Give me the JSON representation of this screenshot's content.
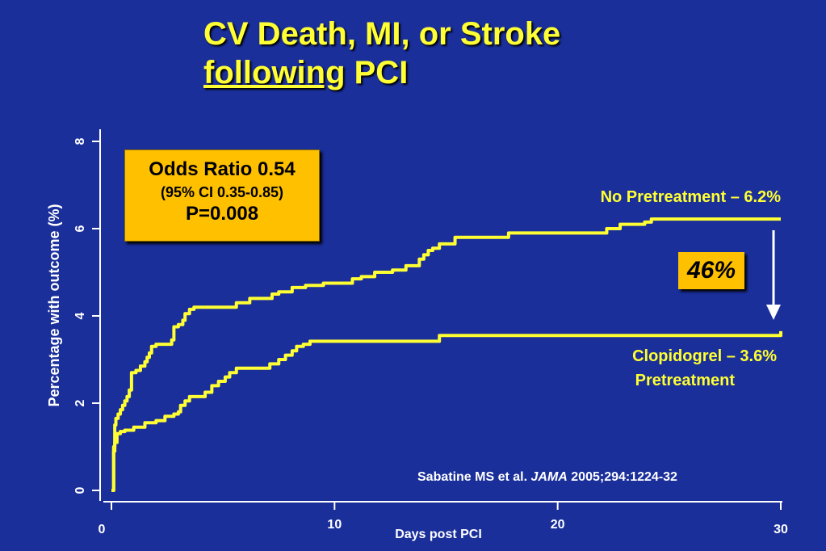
{
  "title": {
    "line1": "CV Death, MI, or Stroke",
    "line2_underlined": "following",
    "line2_rest": " PCI"
  },
  "odds_box": {
    "line1": "Odds Ratio 0.54",
    "line2": "(95% CI 0.35-0.85)",
    "line3": "P=0.008"
  },
  "reduction_badge": "46%",
  "citation": {
    "authors": "Sabatine MS et al. ",
    "journal": "JAMA",
    "ref": " 2005;294:1224-32"
  },
  "colors": {
    "background": "#1a2f9a",
    "series": "#ffff33",
    "callout": "#ffc000",
    "axis": "#ffffff"
  },
  "chart_data": {
    "type": "line",
    "title": "CV Death, MI, or Stroke following PCI",
    "xlabel": "Days post PCI",
    "ylabel": "Percentage with outcome (%)",
    "xlim": [
      0,
      30
    ],
    "ylim": [
      0,
      8
    ],
    "xticks": [
      0,
      10,
      20,
      30
    ],
    "yticks": [
      0,
      2,
      4,
      6,
      8
    ],
    "grid": false,
    "series": [
      {
        "name": "No Pretreatment – 6.2%",
        "label_lines": [
          "No Pretreatment – 6.2%"
        ],
        "x": [
          0,
          0.1,
          0.15,
          0.2,
          0.3,
          0.4,
          0.5,
          0.6,
          0.7,
          0.8,
          0.9,
          1.0,
          1.1,
          1.3,
          1.5,
          1.6,
          1.7,
          1.8,
          2.0,
          2.4,
          2.7,
          2.8,
          3.0,
          3.2,
          3.3,
          3.5,
          3.7,
          4.0,
          5.6,
          6.2,
          6.5,
          7.2,
          7.5,
          8.1,
          8.7,
          9.5,
          10.8,
          11.2,
          11.8,
          12.6,
          13.2,
          13.8,
          14.0,
          14.2,
          14.4,
          14.7,
          15.4,
          16.1,
          17.8,
          19.0,
          20.0,
          21.0,
          22.2,
          22.8,
          23.7,
          23.9,
          24.2,
          30.0
        ],
        "y": [
          0,
          1.0,
          1.5,
          1.65,
          1.75,
          1.85,
          1.95,
          2.05,
          2.15,
          2.3,
          2.7,
          2.7,
          2.75,
          2.85,
          2.95,
          3.05,
          3.15,
          3.3,
          3.35,
          3.35,
          3.45,
          3.75,
          3.8,
          3.9,
          4.05,
          4.15,
          4.2,
          4.2,
          4.3,
          4.4,
          4.4,
          4.5,
          4.55,
          4.65,
          4.7,
          4.75,
          4.85,
          4.9,
          5.0,
          5.05,
          5.15,
          5.3,
          5.4,
          5.5,
          5.55,
          5.65,
          5.8,
          5.8,
          5.9,
          5.9,
          5.9,
          5.9,
          6.0,
          6.1,
          6.1,
          6.15,
          6.22,
          6.22
        ]
      },
      {
        "name": "Clopidogrel – 3.6% Pretreatment",
        "label_lines": [
          "Clopidogrel – 3.6%",
          "Pretreatment"
        ],
        "x": [
          0,
          0.1,
          0.15,
          0.25,
          0.4,
          0.6,
          0.9,
          1.0,
          1.4,
          1.5,
          2.0,
          2.4,
          2.8,
          3.0,
          3.1,
          3.3,
          3.5,
          4.2,
          4.5,
          4.8,
          5.1,
          5.3,
          5.6,
          6.9,
          7.1,
          7.5,
          7.8,
          8.1,
          8.3,
          8.6,
          8.9,
          13.8,
          14.7,
          30.0
        ],
        "y": [
          0,
          0.9,
          1.1,
          1.3,
          1.35,
          1.38,
          1.38,
          1.45,
          1.45,
          1.55,
          1.6,
          1.7,
          1.75,
          1.8,
          1.95,
          2.05,
          2.15,
          2.25,
          2.4,
          2.5,
          2.6,
          2.7,
          2.8,
          2.8,
          2.9,
          3.0,
          3.1,
          3.2,
          3.3,
          3.35,
          3.42,
          3.42,
          3.55,
          3.65
        ]
      }
    ]
  }
}
